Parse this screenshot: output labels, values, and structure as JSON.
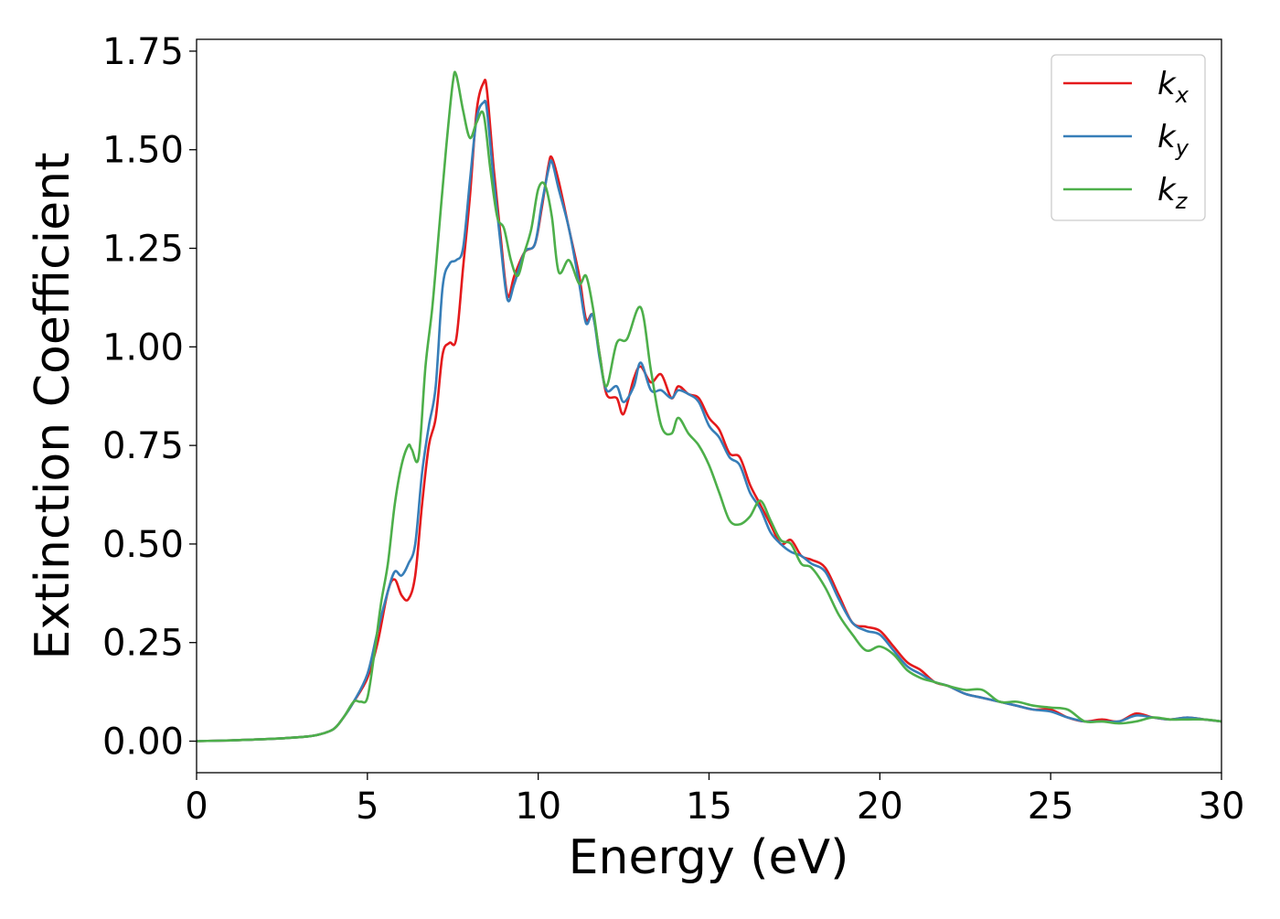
{
  "chart_data": {
    "type": "line",
    "title": "",
    "xlabel": "Energy (eV)",
    "ylabel": "Extinction Coefficient",
    "xlim": [
      0,
      30
    ],
    "ylim": [
      -0.08,
      1.78
    ],
    "xticks": [
      0,
      5,
      10,
      15,
      20,
      25,
      30
    ],
    "xtick_labels": [
      "0",
      "5",
      "10",
      "15",
      "20",
      "25",
      "30"
    ],
    "yticks": [
      0.0,
      0.25,
      0.5,
      0.75,
      1.0,
      1.25,
      1.5,
      1.75
    ],
    "ytick_labels": [
      "0.00",
      "0.25",
      "0.50",
      "0.75",
      "1.00",
      "1.25",
      "1.50",
      "1.75"
    ],
    "grid": false,
    "legend_position": "top-right",
    "series": [
      {
        "name": "kx",
        "base": "k",
        "sub": "x",
        "color": "#e41a1c",
        "x": [
          0,
          1,
          2,
          3,
          3.5,
          4,
          4.3,
          4.6,
          5,
          5.3,
          5.6,
          5.8,
          6,
          6.2,
          6.4,
          6.6,
          6.8,
          7,
          7.2,
          7.4,
          7.6,
          7.8,
          8,
          8.2,
          8.4,
          8.5,
          8.7,
          8.9,
          9.1,
          9.3,
          9.6,
          9.9,
          10.1,
          10.3,
          10.4,
          10.6,
          10.9,
          11.2,
          11.4,
          11.6,
          11.8,
          12,
          12.3,
          12.5,
          12.8,
          13,
          13.3,
          13.6,
          13.9,
          14.1,
          14.4,
          14.7,
          15,
          15.3,
          15.6,
          15.9,
          16.2,
          16.5,
          16.8,
          17.1,
          17.4,
          17.7,
          18,
          18.4,
          18.8,
          19.2,
          19.6,
          20,
          20.4,
          20.8,
          21.2,
          21.6,
          22,
          22.5,
          23,
          23.5,
          24,
          24.5,
          25,
          25.5,
          26,
          26.5,
          27,
          27.5,
          28,
          28.5,
          29,
          29.5,
          30
        ],
        "y": [
          0,
          0.002,
          0.005,
          0.01,
          0.015,
          0.03,
          0.06,
          0.1,
          0.16,
          0.25,
          0.38,
          0.41,
          0.37,
          0.36,
          0.42,
          0.6,
          0.75,
          0.82,
          0.98,
          1.01,
          1.02,
          1.2,
          1.38,
          1.6,
          1.67,
          1.65,
          1.45,
          1.28,
          1.13,
          1.18,
          1.24,
          1.26,
          1.35,
          1.46,
          1.48,
          1.42,
          1.3,
          1.18,
          1.07,
          1.08,
          0.98,
          0.88,
          0.87,
          0.83,
          0.92,
          0.95,
          0.91,
          0.93,
          0.87,
          0.9,
          0.88,
          0.87,
          0.82,
          0.79,
          0.73,
          0.72,
          0.65,
          0.6,
          0.55,
          0.5,
          0.51,
          0.47,
          0.46,
          0.44,
          0.37,
          0.3,
          0.29,
          0.28,
          0.24,
          0.2,
          0.18,
          0.15,
          0.14,
          0.12,
          0.11,
          0.1,
          0.09,
          0.08,
          0.08,
          0.06,
          0.05,
          0.055,
          0.05,
          0.07,
          0.06,
          0.055,
          0.06,
          0.055,
          0.05
        ]
      },
      {
        "name": "ky",
        "base": "k",
        "sub": "y",
        "color": "#377eb8",
        "x": [
          0,
          1,
          2,
          3,
          3.5,
          4,
          4.3,
          4.6,
          5,
          5.3,
          5.6,
          5.8,
          6,
          6.2,
          6.4,
          6.6,
          6.8,
          7,
          7.2,
          7.4,
          7.6,
          7.8,
          8,
          8.2,
          8.4,
          8.5,
          8.7,
          8.9,
          9.1,
          9.3,
          9.6,
          9.9,
          10.1,
          10.3,
          10.4,
          10.6,
          10.9,
          11.2,
          11.4,
          11.6,
          11.8,
          12,
          12.3,
          12.5,
          12.8,
          13,
          13.3,
          13.6,
          13.9,
          14.1,
          14.4,
          14.7,
          15,
          15.3,
          15.6,
          15.9,
          16.2,
          16.5,
          16.8,
          17.1,
          17.4,
          17.7,
          18,
          18.4,
          18.8,
          19.2,
          19.6,
          20,
          20.4,
          20.8,
          21.2,
          21.6,
          22,
          22.5,
          23,
          23.5,
          24,
          24.5,
          25,
          25.5,
          26,
          26.5,
          27,
          27.5,
          28,
          28.5,
          29,
          29.5,
          30
        ],
        "y": [
          0,
          0.002,
          0.005,
          0.01,
          0.015,
          0.03,
          0.06,
          0.1,
          0.17,
          0.28,
          0.38,
          0.43,
          0.42,
          0.45,
          0.5,
          0.68,
          0.8,
          0.9,
          1.15,
          1.21,
          1.22,
          1.25,
          1.42,
          1.58,
          1.62,
          1.6,
          1.42,
          1.26,
          1.12,
          1.16,
          1.24,
          1.26,
          1.36,
          1.45,
          1.47,
          1.4,
          1.3,
          1.16,
          1.06,
          1.08,
          0.97,
          0.89,
          0.9,
          0.86,
          0.9,
          0.96,
          0.89,
          0.89,
          0.87,
          0.89,
          0.88,
          0.86,
          0.8,
          0.77,
          0.72,
          0.7,
          0.63,
          0.59,
          0.53,
          0.5,
          0.48,
          0.47,
          0.45,
          0.43,
          0.36,
          0.3,
          0.28,
          0.27,
          0.23,
          0.19,
          0.17,
          0.15,
          0.14,
          0.12,
          0.11,
          0.1,
          0.09,
          0.08,
          0.075,
          0.06,
          0.05,
          0.05,
          0.05,
          0.065,
          0.06,
          0.055,
          0.06,
          0.055,
          0.05
        ]
      },
      {
        "name": "kz",
        "base": "k",
        "sub": "z",
        "color": "#4daf4a",
        "x": [
          0,
          1,
          2,
          3,
          3.5,
          4,
          4.3,
          4.6,
          4.8,
          5,
          5.2,
          5.4,
          5.6,
          5.8,
          6,
          6.2,
          6.3,
          6.5,
          6.7,
          6.9,
          7.1,
          7.3,
          7.5,
          7.6,
          7.8,
          8,
          8.2,
          8.4,
          8.6,
          8.8,
          9,
          9.2,
          9.4,
          9.6,
          9.8,
          10,
          10.2,
          10.4,
          10.6,
          10.9,
          11.2,
          11.4,
          11.6,
          11.8,
          12,
          12.3,
          12.6,
          13,
          13.3,
          13.6,
          13.9,
          14.1,
          14.4,
          14.7,
          15,
          15.3,
          15.6,
          15.9,
          16.2,
          16.5,
          16.8,
          17.1,
          17.4,
          17.7,
          18,
          18.4,
          18.8,
          19.2,
          19.6,
          20,
          20.4,
          20.8,
          21.2,
          21.6,
          22,
          22.5,
          23,
          23.5,
          24,
          24.5,
          25,
          25.5,
          26,
          26.5,
          27,
          27.5,
          28,
          28.5,
          29,
          29.5,
          30
        ],
        "y": [
          0,
          0.002,
          0.005,
          0.01,
          0.015,
          0.03,
          0.06,
          0.1,
          0.1,
          0.11,
          0.22,
          0.35,
          0.45,
          0.6,
          0.7,
          0.75,
          0.74,
          0.72,
          0.95,
          1.1,
          1.3,
          1.5,
          1.67,
          1.69,
          1.6,
          1.53,
          1.57,
          1.59,
          1.45,
          1.33,
          1.3,
          1.22,
          1.18,
          1.24,
          1.3,
          1.4,
          1.41,
          1.33,
          1.19,
          1.22,
          1.16,
          1.18,
          1.1,
          0.98,
          0.9,
          1.01,
          1.02,
          1.1,
          0.94,
          0.8,
          0.78,
          0.82,
          0.78,
          0.75,
          0.7,
          0.63,
          0.56,
          0.55,
          0.57,
          0.61,
          0.56,
          0.51,
          0.5,
          0.45,
          0.44,
          0.39,
          0.32,
          0.27,
          0.23,
          0.24,
          0.22,
          0.18,
          0.16,
          0.15,
          0.14,
          0.13,
          0.13,
          0.1,
          0.1,
          0.09,
          0.085,
          0.08,
          0.05,
          0.05,
          0.045,
          0.05,
          0.06,
          0.055,
          0.055,
          0.055,
          0.05
        ]
      }
    ]
  }
}
